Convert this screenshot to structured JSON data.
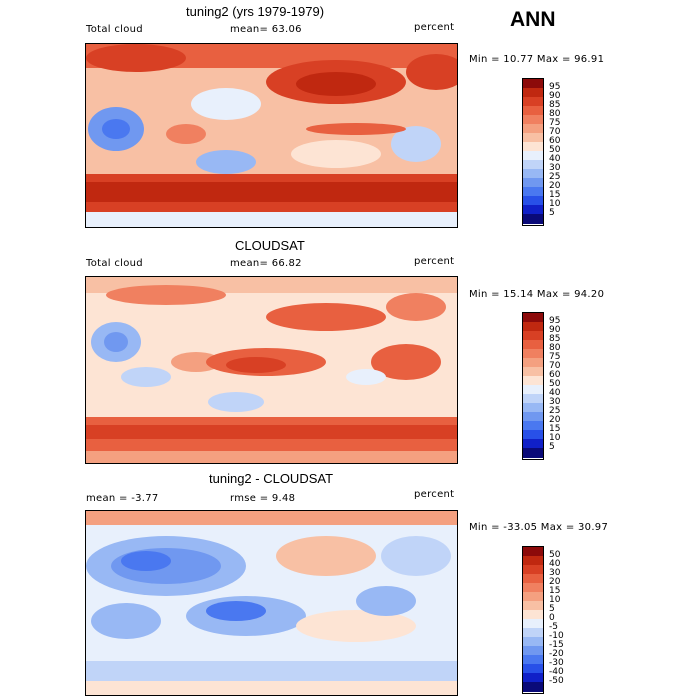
{
  "season": "ANN",
  "panels": [
    {
      "title": "tuning2 (yrs 1979-1979)",
      "left_label": "Total cloud",
      "center_label": "mean=  63.06",
      "units": "percent",
      "minmax": "Min =  10.77 Max =  96.91",
      "colorbar_labels": [
        "95",
        "90",
        "85",
        "80",
        "75",
        "70",
        "60",
        "50",
        "40",
        "30",
        "25",
        "20",
        "15",
        "10",
        "5"
      ]
    },
    {
      "title": "CLOUDSAT",
      "left_label": "Total cloud",
      "center_label": "mean=  66.82",
      "units": "percent",
      "minmax": "Min =  15.14 Max =  94.20",
      "colorbar_labels": [
        "95",
        "90",
        "85",
        "80",
        "75",
        "70",
        "60",
        "50",
        "40",
        "30",
        "25",
        "20",
        "15",
        "10",
        "5"
      ]
    },
    {
      "title": "tuning2 - CLOUDSAT",
      "left_label": "mean =  -3.77",
      "center_label": "rmse =   9.48",
      "units": "percent",
      "minmax": "Min = -33.05 Max =  30.97",
      "colorbar_labels": [
        "50",
        "40",
        "30",
        "20",
        "15",
        "10",
        "5",
        "0",
        "-5",
        "-10",
        "-15",
        "-20",
        "-30",
        "-40",
        "-50"
      ]
    }
  ],
  "colors": {
    "scale": [
      "#0a0a78",
      "#1020c8",
      "#2850e8",
      "#4a78f0",
      "#7098f0",
      "#98b8f4",
      "#c0d4f8",
      "#e8f0fc",
      "#fde4d4",
      "#f8c0a4",
      "#f4a080",
      "#f08060",
      "#e86040",
      "#d84024",
      "#c02810",
      "#8c0a0a"
    ]
  }
}
